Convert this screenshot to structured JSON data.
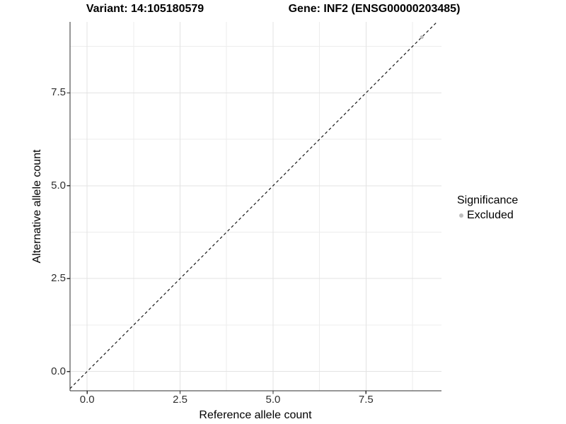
{
  "chart_data": {
    "type": "scatter",
    "titles": {
      "left": "Variant: 14:105180579",
      "right": "Gene: INF2 (ENSG00000203485)"
    },
    "xlabel": "Reference allele count",
    "ylabel": "Alternative allele count",
    "xlim": [
      -0.46,
      9.53
    ],
    "ylim": [
      -0.52,
      9.41
    ],
    "xticks": [
      0,
      2.5,
      5,
      7.5
    ],
    "xtick_labels": [
      "0.0",
      "2.5",
      "5.0",
      "7.5"
    ],
    "yticks": [
      0,
      2.5,
      5,
      7.5
    ],
    "ytick_labels": [
      "0.0",
      "2.5",
      "5.0",
      "7.5"
    ],
    "minor_step": 1.25,
    "grid": true,
    "identity_line": {
      "show": true,
      "style": "dashed",
      "color": "#1a1a1a"
    },
    "series": [
      {
        "name": "Excluded",
        "color": "#bebebe",
        "points": [
          [
            9,
            9
          ]
        ]
      }
    ],
    "legend": {
      "title": "Significance",
      "position": "right",
      "items": [
        {
          "label": "Excluded",
          "color": "#bebebe"
        }
      ]
    },
    "colors": {
      "grid_major": "#e3e3e3",
      "grid_minor": "#ececec",
      "axis": "#2f2f2f",
      "point": "#bebebe",
      "background": "#ffffff"
    }
  }
}
